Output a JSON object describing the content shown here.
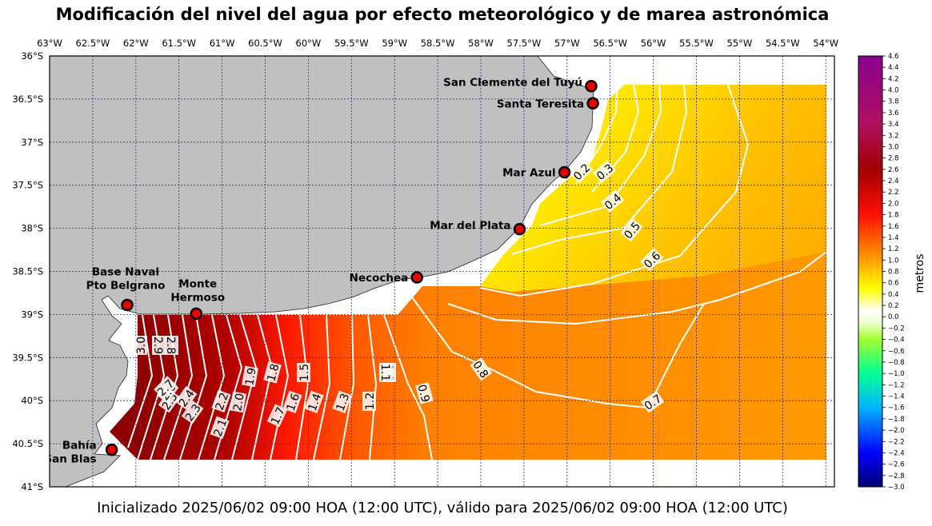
{
  "title": "Modificación del nivel del agua por efecto meteorológico y de marea astronómica",
  "caption": "Inicializado 2025/06/02 09:00 HOA (12:00 UTC), válido para 2025/06/02 09:00 HOA (12:00 UTC)",
  "map": {
    "lon_range": [
      -63,
      -53.9
    ],
    "lat_range": [
      -41,
      -36
    ],
    "lon_ticks": [
      {
        "value": -63,
        "label": "63°W"
      },
      {
        "value": -62.5,
        "label": "62.5°W"
      },
      {
        "value": -62,
        "label": "62°W"
      },
      {
        "value": -61.5,
        "label": "61.5°W"
      },
      {
        "value": -61,
        "label": "61°W"
      },
      {
        "value": -60.5,
        "label": "60.5°W"
      },
      {
        "value": -60,
        "label": "60°W"
      },
      {
        "value": -59.5,
        "label": "59.5°W"
      },
      {
        "value": -59,
        "label": "59°W"
      },
      {
        "value": -58.5,
        "label": "58.5°W"
      },
      {
        "value": -58,
        "label": "58°W"
      },
      {
        "value": -57.5,
        "label": "57.5°W"
      },
      {
        "value": -57,
        "label": "57°W"
      },
      {
        "value": -56.5,
        "label": "56.5°W"
      },
      {
        "value": -56,
        "label": "56°W"
      },
      {
        "value": -55.5,
        "label": "55.5°W"
      },
      {
        "value": -55,
        "label": "55°W"
      },
      {
        "value": -54.5,
        "label": "54.5°W"
      },
      {
        "value": -54,
        "label": "54°W"
      }
    ],
    "lat_ticks": [
      {
        "value": -36,
        "label": "36°S"
      },
      {
        "value": -36.5,
        "label": "36.5°S"
      },
      {
        "value": -37,
        "label": "37°S"
      },
      {
        "value": -37.5,
        "label": "37.5°S"
      },
      {
        "value": -38,
        "label": "38°S"
      },
      {
        "value": -38.5,
        "label": "38.5°S"
      },
      {
        "value": -39,
        "label": "39°S"
      },
      {
        "value": -39.5,
        "label": "39.5°S"
      },
      {
        "value": -40,
        "label": "40°S"
      },
      {
        "value": -40.5,
        "label": "40.5°S"
      },
      {
        "value": -41,
        "label": "41°S"
      }
    ],
    "land_color": "#c0c0c0",
    "grid_color": "#2a2aa0",
    "contour_color": "#ffffff"
  },
  "stations": [
    {
      "name": "San Clemente del Tuyú",
      "lon": -56.72,
      "lat": -36.35
    },
    {
      "name": "Santa Teresita",
      "lon": -56.7,
      "lat": -36.55
    },
    {
      "name": "Mar Azul",
      "lon": -57.03,
      "lat": -37.35
    },
    {
      "name": "Mar del Plata",
      "lon": -57.55,
      "lat": -38.01
    },
    {
      "name": "Necochea",
      "lon": -58.74,
      "lat": -38.57
    },
    {
      "name": "Base Naval\nPto Belgrano",
      "lon": -62.1,
      "lat": -38.89
    },
    {
      "name": "Monte\nHermoso",
      "lon": -61.3,
      "lat": -38.99
    },
    {
      "name": "Bahía\nSan Blas",
      "lon": -62.28,
      "lat": -40.57
    }
  ],
  "contour_labels": [
    "0.2",
    "0.3",
    "0.4",
    "0.5",
    "0.6",
    "0.7",
    "0.8",
    "0.9",
    "1.0",
    "1.1",
    "1.2",
    "1.3",
    "1.4",
    "1.5",
    "1.6",
    "1.7",
    "1.8",
    "1.9",
    "2.0",
    "2.1",
    "2.2",
    "2.3",
    "2.4",
    "2.5",
    "2.6",
    "2.7",
    "2.8",
    "2.9",
    "3.0"
  ],
  "colorbar": {
    "label": "metros",
    "min": -3.0,
    "max": 4.6,
    "tick_labels": [
      "4.6",
      "4.4",
      "4.2",
      "4.0",
      "3.8",
      "3.6",
      "3.4",
      "3.2",
      "3.0",
      "2.8",
      "2.6",
      "2.4",
      "2.2",
      "2.0",
      "1.8",
      "1.6",
      "1.4",
      "1.2",
      "1.0",
      "0.8",
      "0.6",
      "0.4",
      "0.2",
      "0.0",
      "−0.2",
      "−0.4",
      "−0.6",
      "−0.8",
      "−1.0",
      "−1.2",
      "−1.4",
      "−1.6",
      "−1.8",
      "−2.0",
      "−2.2",
      "−2.4",
      "−2.6",
      "−2.8",
      "−3.0"
    ],
    "stops": [
      {
        "v": -3.0,
        "c": "#000070"
      },
      {
        "v": -2.4,
        "c": "#0000ff"
      },
      {
        "v": -1.6,
        "c": "#00b4ff"
      },
      {
        "v": -1.0,
        "c": "#00ff96"
      },
      {
        "v": -0.4,
        "c": "#a0ff30"
      },
      {
        "v": -0.1,
        "c": "#f0ffd0"
      },
      {
        "v": 0.1,
        "c": "#ffffff"
      },
      {
        "v": 0.5,
        "c": "#ffff00"
      },
      {
        "v": 1.0,
        "c": "#ffa000"
      },
      {
        "v": 1.8,
        "c": "#ff1000"
      },
      {
        "v": 2.6,
        "c": "#a00000"
      },
      {
        "v": 3.4,
        "c": "#b01060"
      },
      {
        "v": 4.6,
        "c": "#8a0090"
      }
    ]
  }
}
